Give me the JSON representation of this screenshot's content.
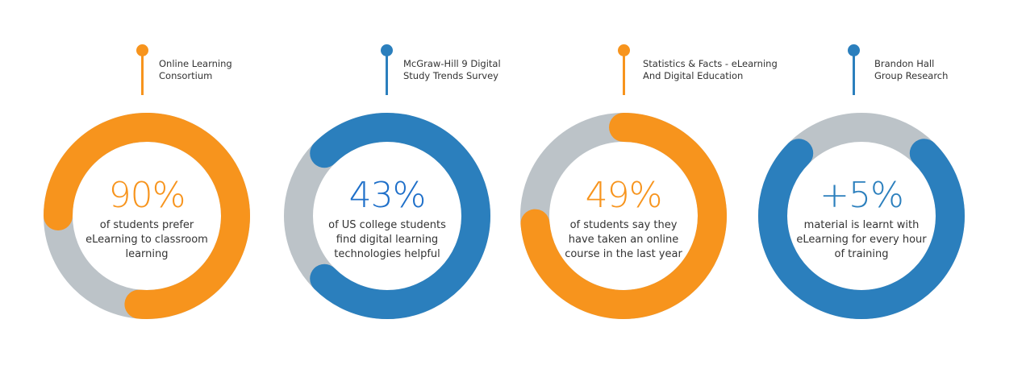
{
  "colors": {
    "orange": "#F7941D",
    "blue": "#2B7FBD",
    "blue_text": "#1E6FC9",
    "track": "#BCC3C8"
  },
  "stats": [
    {
      "source": "Online Learning\nConsortium",
      "value": "90%",
      "description": "of students prefer\neLearning to classroom\nlearning",
      "color": "#F7941D"
    },
    {
      "source": "McGraw-Hill 9 Digital\nStudy Trends Survey",
      "value": "43%",
      "description": "of US college students\nfind digital learning\ntechnologies helpful",
      "color": "#2B7FBD"
    },
    {
      "source": "Statistics & Facts - eLearning\nAnd Digital Education",
      "value": "49%",
      "description": "of students say they\nhave taken an online\ncourse in the last year",
      "color": "#F7941D"
    },
    {
      "source": "Brandon Hall\nGroup Research",
      "value": "+5%",
      "description": "material is learnt with\neLearning for every hour\nof training",
      "color": "#2B7FBD"
    }
  ]
}
